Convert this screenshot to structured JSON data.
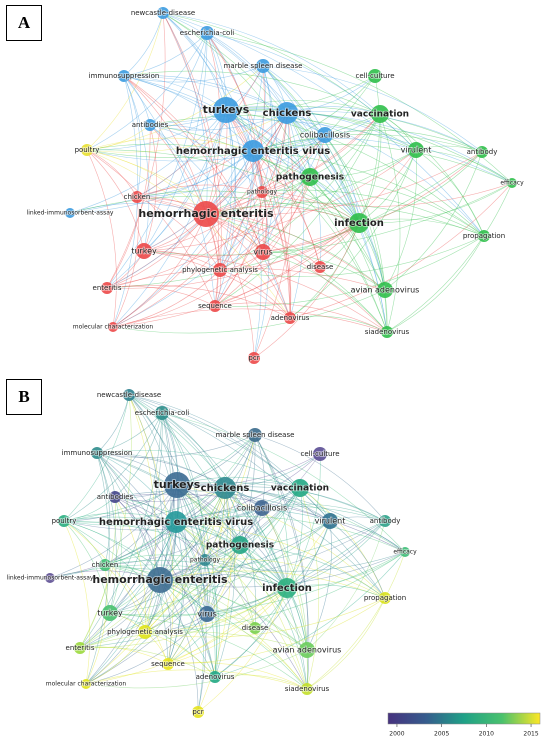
{
  "panels": [
    {
      "label": "A",
      "nodes": [
        "newcastle-disease",
        "escherichia-coli",
        "marble spleen disease",
        "immunosuppression",
        "cell-culture",
        "turkeys",
        "chickens",
        "vaccination",
        "antibodies",
        "colibacillosis",
        "poultry",
        "hemorrhagic enteritis virus",
        "virulent",
        "antibody",
        "pathogenesis",
        "efficacy",
        "chicken",
        "pathology",
        "linked-immunosorbent-assay",
        "hemorrhagic enteritis",
        "infection",
        "propagation",
        "turkey",
        "virus",
        "phylogenetic analysis",
        "disease",
        "enteritis",
        "avian adenovirus",
        "sequence",
        "adenovirus",
        "molecular characterization",
        "siadenovirus",
        "pcr"
      ]
    },
    {
      "label": "B",
      "nodes": [
        "newcastle-disease",
        "escherichia-coli",
        "marble spleen disease",
        "immunosuppression",
        "cell-culture",
        "turkeys",
        "chickens",
        "vaccination",
        "antibodies",
        "colibacillosis",
        "poultry",
        "hemorrhagic enteritis virus",
        "virulent",
        "antibody",
        "pathogenesis",
        "efficacy",
        "chicken",
        "pathology",
        "linked-immunosorbent-assay",
        "hemorrhagic enteritis",
        "infection",
        "propagation",
        "turkey",
        "virus",
        "phylogenetic analysis",
        "disease",
        "enteritis",
        "avian adenovirus",
        "sequence",
        "adenovirus",
        "molecular characterization",
        "siadenovirus",
        "pcr"
      ]
    }
  ],
  "legend": {
    "range": [
      1999,
      2016
    ],
    "ticks": [
      2000,
      2005,
      2010,
      2015
    ]
  }
}
